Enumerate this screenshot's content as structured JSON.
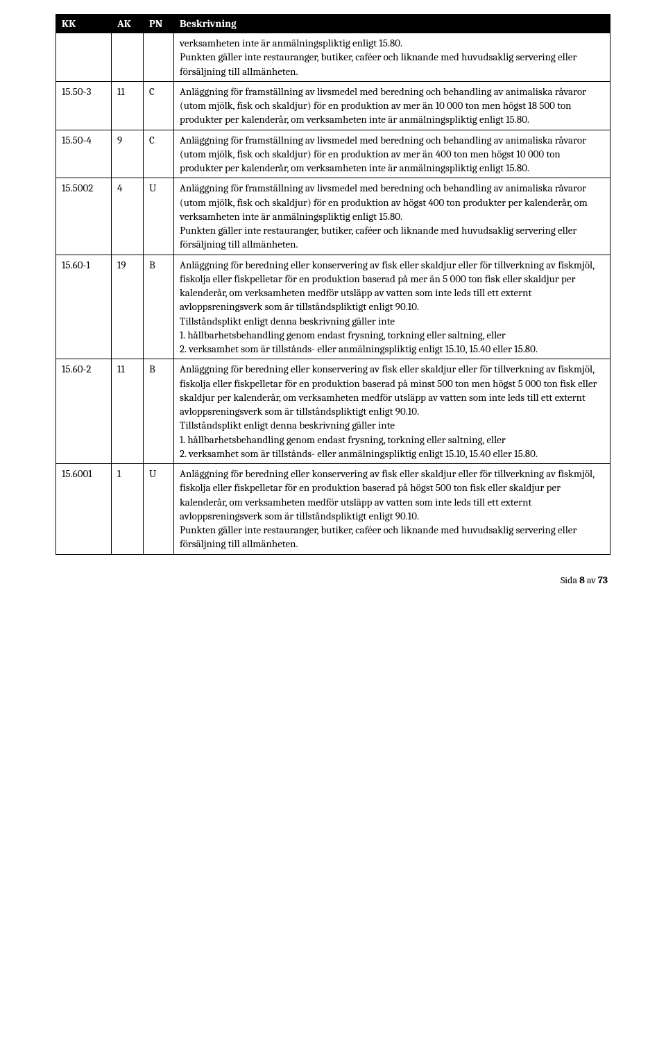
{
  "table": {
    "headers": {
      "kk": "KK",
      "ak": "AK",
      "pn": "PN",
      "desc": "Beskrivning"
    },
    "rows": [
      {
        "kk": "",
        "ak": "",
        "pn": "",
        "desc": "verksamheten inte är anmälningspliktig enligt 15.80.\nPunkten gäller inte restauranger, butiker, caféer och liknande med huvudsaklig servering eller försäljning till allmänheten."
      },
      {
        "kk": "15.50-3",
        "ak": "11",
        "pn": "C",
        "desc": "Anläggning för framställning av livsmedel med beredning och behandling av animaliska råvaror (utom mjölk, fisk och skaldjur) för en produktion av mer än 10 000 ton men högst 18 500 ton produkter per kalenderår, om verksamheten inte är anmälningspliktig enligt 15.80."
      },
      {
        "kk": "15.50-4",
        "ak": "9",
        "pn": "C",
        "desc": "Anläggning för framställning av livsmedel med beredning och behandling av animaliska råvaror (utom mjölk, fisk och skaldjur) för en produktion av mer än 400 ton men högst 10 000 ton produkter per kalenderår, om verksamheten inte är anmälningspliktig enligt 15.80."
      },
      {
        "kk": "15.5002",
        "ak": "4",
        "pn": "U",
        "desc": "Anläggning för framställning av livsmedel med beredning och behandling av animaliska råvaror (utom mjölk, fisk och skaldjur) för en produktion av högst 400 ton produkter per kalenderår, om verksamheten inte är anmälningspliktig enligt 15.80.\nPunkten gäller inte restauranger, butiker, caféer och liknande med huvudsaklig servering eller försäljning till allmänheten."
      },
      {
        "kk": "15.60-1",
        "ak": "19",
        "pn": "B",
        "desc": "Anläggning för beredning eller konservering av fisk eller skaldjur eller för tillverkning av fiskmjöl, fiskolja eller fiskpelletar för en produktion baserad på mer än 5 000 ton fisk eller skaldjur per kalenderår, om verksamheten medför utsläpp av vatten som inte leds till ett externt avloppsreningsverk som är tillståndspliktigt enligt 90.10.\nTillståndsplikt enligt denna beskrivning gäller inte\n1. hållbarhetsbehandling genom endast frysning, torkning eller saltning, eller\n2. verksamhet som är tillstånds- eller anmälningspliktig enligt 15.10, 15.40 eller 15.80."
      },
      {
        "kk": "15.60-2",
        "ak": "11",
        "pn": "B",
        "desc": "Anläggning för beredning eller konservering av fisk eller skaldjur eller för tillverkning av fiskmjöl, fiskolja eller fiskpelletar för en produktion baserad på minst 500 ton men högst 5 000 ton fisk eller skaldjur per kalenderår, om verksamheten medför utsläpp av vatten som inte leds till ett externt avloppsreningsverk som är tillståndspliktigt enligt 90.10.\nTillståndsplikt enligt denna beskrivning gäller inte\n1. hållbarhetsbehandling genom endast frysning, torkning eller saltning, eller\n2. verksamhet som är tillstånds- eller anmälningspliktig enligt 15.10, 15.40 eller 15.80."
      },
      {
        "kk": "15.6001",
        "ak": "1",
        "pn": "U",
        "desc": "Anläggning för beredning eller konservering av fisk eller skaldjur eller för tillverkning av fiskmjöl, fiskolja eller fiskpelletar för en produktion baserad på högst 500 ton fisk eller skaldjur per kalenderår, om verksamheten medför utsläpp av vatten som inte leds till ett externt avloppsreningsverk som är tillståndspliktigt enligt 90.10.\nPunkten gäller inte restauranger, butiker, caféer och liknande med huvudsaklig servering eller försäljning till allmänheten."
      }
    ]
  },
  "footer": {
    "prefix": "Sida ",
    "page": "8",
    "middle": " av ",
    "total": "73"
  }
}
